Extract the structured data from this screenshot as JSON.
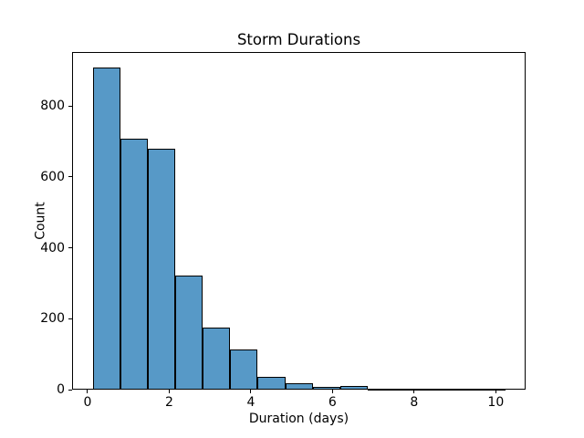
{
  "chart_data": {
    "type": "bar",
    "subtype": "histogram",
    "title": "Storm Durations",
    "xlabel": "Duration (days)",
    "ylabel": "Count",
    "bin_start": 0.125,
    "bin_width": 0.674,
    "counts": [
      907,
      708,
      678,
      321,
      175,
      113,
      37,
      19,
      8,
      10,
      3,
      1,
      1,
      1,
      1
    ],
    "xticks": [
      0,
      2,
      4,
      6,
      8,
      10
    ],
    "yticks": [
      0,
      200,
      400,
      600,
      800
    ],
    "xlim": [
      -0.38,
      10.73
    ],
    "ylim": [
      0,
      952
    ],
    "grid": false,
    "legend": "none",
    "colors": {
      "bar_fill": "#5799c7",
      "bar_edge": "#000000",
      "axis": "#000000",
      "text": "#000000",
      "background": "#ffffff"
    }
  }
}
